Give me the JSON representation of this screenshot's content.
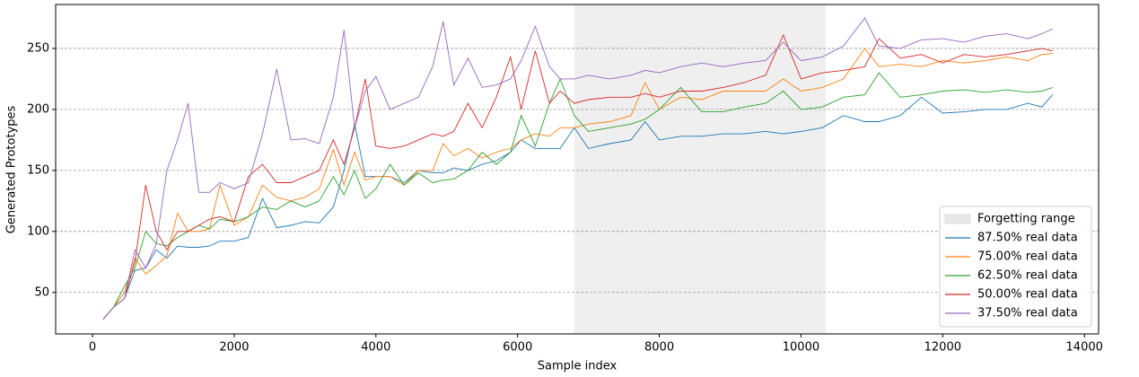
{
  "chart_data": {
    "type": "line",
    "xlabel": "Sample index",
    "ylabel": "Generated Prototypes",
    "x": [
      150,
      300,
      450,
      600,
      750,
      900,
      1050,
      1200,
      1350,
      1500,
      1650,
      1800,
      2000,
      2200,
      2400,
      2600,
      2800,
      3000,
      3200,
      3400,
      3550,
      3700,
      3850,
      4000,
      4200,
      4400,
      4600,
      4800,
      4950,
      5100,
      5300,
      5500,
      5700,
      5900,
      6050,
      6250,
      6450,
      6600,
      6800,
      7000,
      7300,
      7600,
      7800,
      8000,
      8300,
      8600,
      8900,
      9200,
      9500,
      9750,
      10000,
      10300,
      10600,
      10900,
      11100,
      11400,
      11700,
      12000,
      12300,
      12600,
      12900,
      13200,
      13400,
      13550
    ],
    "series": [
      {
        "name": "87.50% real data",
        "color": "#1f77b4",
        "values": [
          28,
          38,
          45,
          68,
          70,
          85,
          78,
          88,
          87,
          87,
          88,
          92,
          92,
          95,
          127,
          103,
          105,
          108,
          107,
          120,
          150,
          188,
          145,
          145,
          145,
          140,
          150,
          148,
          148,
          152,
          150,
          155,
          158,
          165,
          175,
          168,
          168,
          168,
          185,
          168,
          172,
          175,
          190,
          175,
          178,
          178,
          180,
          180,
          182,
          180,
          182,
          185,
          195,
          190,
          190,
          195,
          210,
          197,
          198,
          200,
          200,
          205,
          202,
          212
        ]
      },
      {
        "name": "75.00% real data",
        "color": "#ff7f0e",
        "values": [
          28,
          38,
          50,
          78,
          65,
          72,
          80,
          115,
          100,
          100,
          102,
          138,
          105,
          112,
          138,
          128,
          125,
          128,
          135,
          167,
          138,
          165,
          142,
          145,
          145,
          138,
          150,
          150,
          172,
          162,
          168,
          160,
          165,
          168,
          175,
          180,
          178,
          185,
          185,
          188,
          190,
          195,
          222,
          200,
          210,
          208,
          215,
          215,
          215,
          225,
          215,
          218,
          225,
          250,
          235,
          237,
          235,
          240,
          238,
          240,
          243,
          240,
          245,
          246
        ]
      },
      {
        "name": "62.50% real data",
        "color": "#2ca02c",
        "values": [
          28,
          38,
          55,
          70,
          100,
          90,
          88,
          95,
          100,
          105,
          102,
          110,
          108,
          112,
          120,
          118,
          125,
          120,
          125,
          145,
          130,
          150,
          127,
          135,
          155,
          138,
          148,
          140,
          142,
          143,
          150,
          165,
          155,
          165,
          195,
          170,
          205,
          225,
          195,
          182,
          185,
          188,
          192,
          200,
          218,
          198,
          198,
          202,
          205,
          215,
          200,
          202,
          210,
          212,
          230,
          210,
          212,
          215,
          216,
          214,
          216,
          214,
          215,
          218
        ]
      },
      {
        "name": "50.00% real data",
        "color": "#d62728",
        "values": [
          28,
          38,
          45,
          75,
          138,
          100,
          85,
          100,
          100,
          105,
          110,
          112,
          108,
          145,
          155,
          140,
          140,
          145,
          150,
          175,
          155,
          185,
          225,
          170,
          168,
          170,
          175,
          180,
          178,
          182,
          205,
          185,
          210,
          243,
          200,
          248,
          205,
          215,
          205,
          208,
          210,
          210,
          213,
          210,
          215,
          215,
          218,
          222,
          228,
          261,
          225,
          230,
          232,
          235,
          258,
          242,
          245,
          238,
          245,
          243,
          245,
          248,
          250,
          248
        ]
      },
      {
        "name": "37.50% real data",
        "color": "#9467bd",
        "values": [
          28,
          38,
          45,
          85,
          70,
          90,
          150,
          175,
          205,
          132,
          132,
          140,
          135,
          140,
          180,
          233,
          175,
          176,
          172,
          210,
          265,
          185,
          215,
          227,
          200,
          205,
          210,
          235,
          272,
          220,
          242,
          218,
          220,
          225,
          240,
          268,
          235,
          225,
          225,
          228,
          225,
          228,
          232,
          230,
          235,
          238,
          235,
          238,
          240,
          255,
          240,
          243,
          252,
          275,
          252,
          250,
          257,
          258,
          255,
          260,
          262,
          258,
          262,
          266
        ]
      }
    ],
    "shaded_range": {
      "label": "Forgetting range",
      "x": [
        6800,
        10350
      ],
      "color": "#e8e8e8"
    },
    "xlim": [
      -520,
      14200
    ],
    "xticks": [
      0,
      2000,
      4000,
      6000,
      8000,
      10000,
      12000,
      14000
    ],
    "ylim": [
      16,
      286
    ],
    "yticks": [
      50,
      100,
      150,
      200,
      250
    ],
    "grid": true,
    "legend": "lower right"
  }
}
